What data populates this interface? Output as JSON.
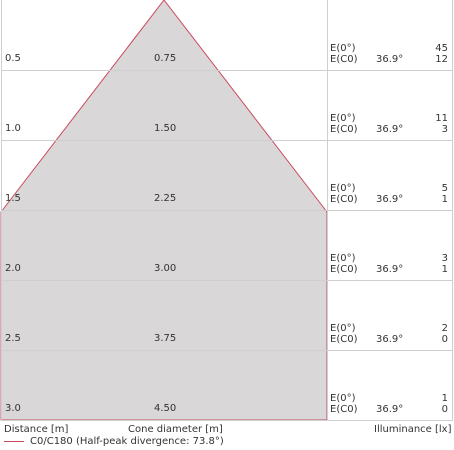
{
  "colors": {
    "cone_fill": "#d2d0d0",
    "cone_stroke": "#c94a5e",
    "grid": "#cfcfcf"
  },
  "rows": [
    {
      "distance": "0.5",
      "diameter": "0.75",
      "label_e0": "E(0°)",
      "label_ec0": "E(C0)",
      "angle": "36.9°",
      "e0": "45",
      "ec0": "12"
    },
    {
      "distance": "1.0",
      "diameter": "1.50",
      "label_e0": "E(0°)",
      "label_ec0": "E(C0)",
      "angle": "36.9°",
      "e0": "11",
      "ec0": "3"
    },
    {
      "distance": "1.5",
      "diameter": "2.25",
      "label_e0": "E(0°)",
      "label_ec0": "E(C0)",
      "angle": "36.9°",
      "e0": "5",
      "ec0": "1"
    },
    {
      "distance": "2.0",
      "diameter": "3.00",
      "label_e0": "E(0°)",
      "label_ec0": "E(C0)",
      "angle": "36.9°",
      "e0": "3",
      "ec0": "1"
    },
    {
      "distance": "2.5",
      "diameter": "3.75",
      "label_e0": "E(0°)",
      "label_ec0": "E(C0)",
      "angle": "36.9°",
      "e0": "2",
      "ec0": "0"
    },
    {
      "distance": "3.0",
      "diameter": "4.50",
      "label_e0": "E(0°)",
      "label_ec0": "E(C0)",
      "angle": "36.9°",
      "e0": "1",
      "ec0": "0"
    }
  ],
  "footer": {
    "distance_label": "Distance [m]",
    "diameter_label": "Cone diameter [m]",
    "illuminance_label": "Illuminance [lx]"
  },
  "legend": {
    "text": "C0/C180 (Half-peak divergence: 73.8°)"
  }
}
